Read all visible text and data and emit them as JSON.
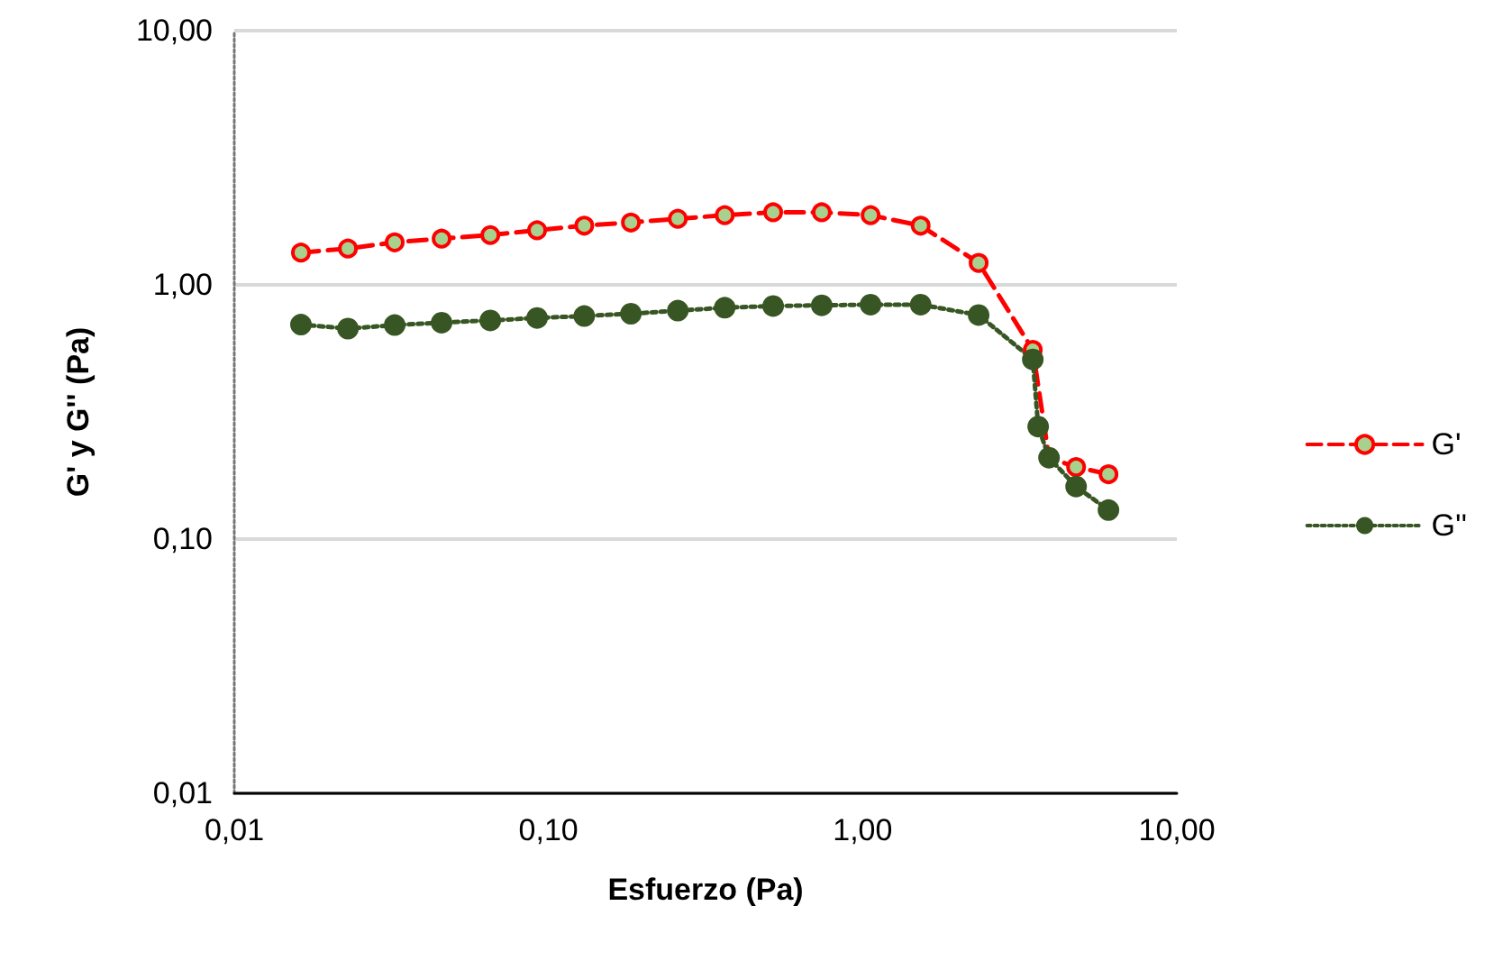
{
  "chart_data": {
    "type": "line",
    "xlabel": "Esfuerzo (Pa)",
    "ylabel": "G' y G'' (Pa)",
    "log": "xy",
    "grid": "y",
    "legend": "right",
    "marker": "circle",
    "xlim": [
      0.01,
      10
    ],
    "xticks": [
      {
        "value": 0.01,
        "label": "0,01"
      },
      {
        "value": 0.1,
        "label": "0,10"
      },
      {
        "value": 1,
        "label": "1,00"
      },
      {
        "value": 10,
        "label": "10,00"
      }
    ],
    "ylim": [
      0.01,
      10
    ],
    "yticks": [
      {
        "value": 0.01,
        "label": "0,01"
      },
      {
        "value": 0.1,
        "label": "0,10"
      },
      {
        "value": 1,
        "label": "1,00"
      },
      {
        "value": 10,
        "label": "10,00"
      }
    ],
    "x": [
      0.0163,
      0.023,
      0.0324,
      0.0457,
      0.0653,
      0.092,
      0.13,
      0.183,
      0.258,
      0.364,
      0.519,
      0.741,
      1.06,
      1.53,
      2.34,
      3.48,
      3.62,
      3.92,
      4.78,
      6.06
    ],
    "series": [
      {
        "name": "G'",
        "color": "#ff0000",
        "line_style": "dashed",
        "values": [
          1.34,
          1.39,
          1.47,
          1.52,
          1.57,
          1.64,
          1.71,
          1.76,
          1.82,
          1.88,
          1.93,
          1.93,
          1.88,
          1.71,
          1.22,
          0.555,
          null,
          0.209,
          0.192,
          0.18
        ]
      },
      {
        "name": "G''",
        "color": "#375623",
        "line_style": "dotted",
        "values": [
          0.698,
          0.673,
          0.695,
          0.71,
          0.725,
          0.741,
          0.754,
          0.77,
          0.792,
          0.813,
          0.826,
          0.831,
          0.836,
          0.836,
          0.761,
          0.509,
          0.277,
          0.209,
          0.161,
          0.13
        ]
      }
    ]
  }
}
